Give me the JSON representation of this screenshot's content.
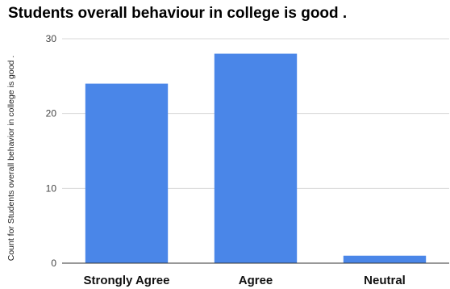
{
  "chart_data": {
    "type": "bar",
    "title": "Students overall behaviour in college is good .",
    "xlabel": "",
    "ylabel": "Count for Students overall behavior in college is good .",
    "categories": [
      "Strongly Agree",
      "Agree",
      "Neutral"
    ],
    "values": [
      24,
      28,
      1
    ],
    "ylim": [
      0,
      30
    ],
    "yticks": [
      0,
      10,
      20,
      30
    ],
    "grid": true,
    "legend": "none",
    "bar_color": "#4a86e8"
  }
}
